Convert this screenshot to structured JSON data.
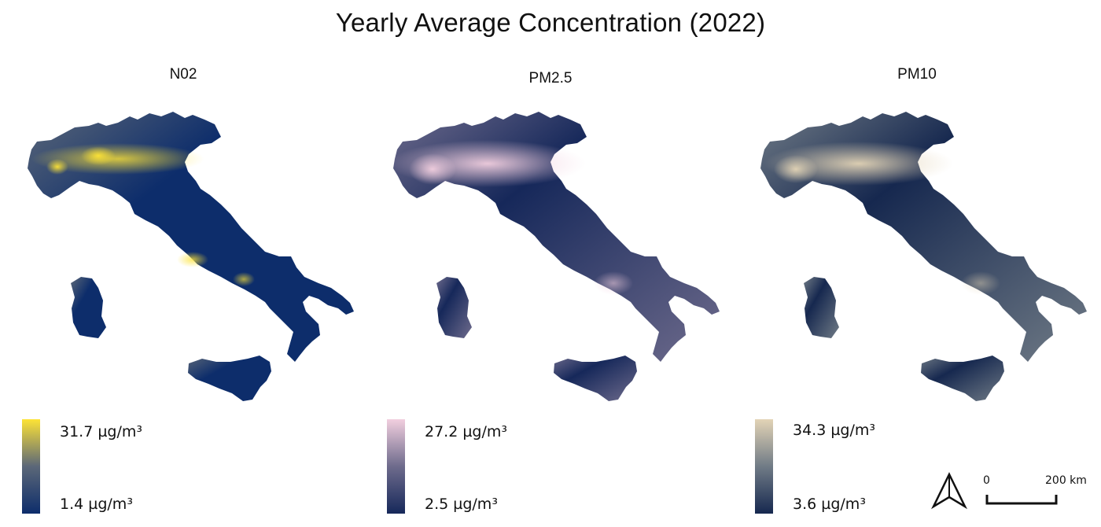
{
  "title": "Yearly Average Concentration (2022)",
  "panels": [
    {
      "title": "N02",
      "legend": {
        "max_label": "31.7 µg/m³",
        "min_label": "1.4 µg/m³"
      },
      "colors": {
        "low": "#0d2d6b",
        "mid": "#5b6778",
        "high": "#fde336"
      }
    },
    {
      "title": "PM2.5",
      "legend": {
        "max_label": "27.2 µg/m³",
        "min_label": "2.5 µg/m³"
      },
      "colors": {
        "low": "#16285a",
        "mid": "#6e6b8c",
        "high": "#f2cfdf"
      }
    },
    {
      "title": "PM10",
      "legend": {
        "max_label": "34.3 µg/m³",
        "min_label": "3.6 µg/m³"
      },
      "colors": {
        "low": "#16284f",
        "mid": "#707b86",
        "high": "#e3d4b6"
      }
    }
  ],
  "scalebar": {
    "start_label": "0",
    "end_label": "200 km"
  },
  "north_arrow_icon": "north-arrow-icon"
}
